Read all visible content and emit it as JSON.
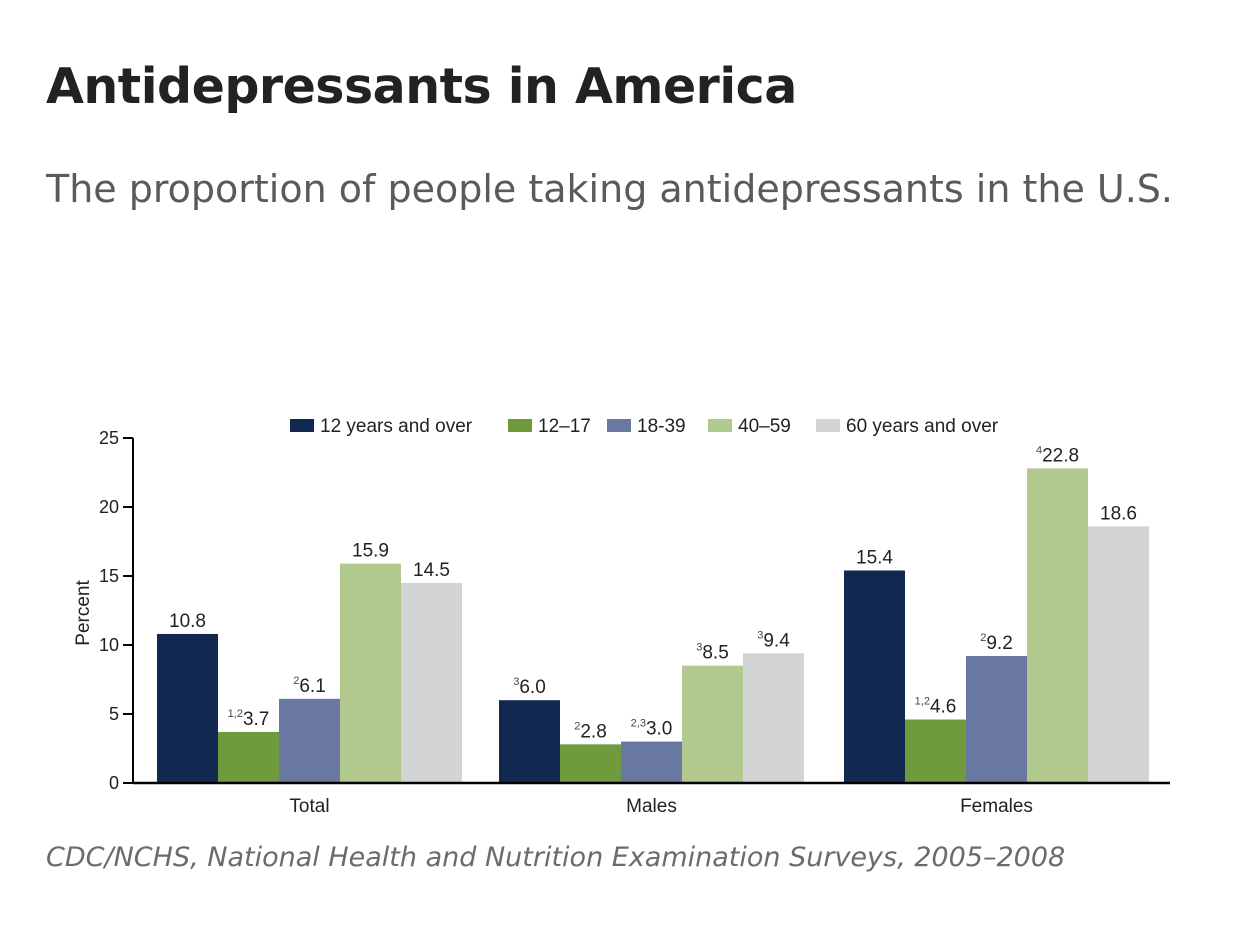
{
  "header": {
    "title": "Antidepressants in America",
    "subtitle": "The proportion of people taking antidepressants in the U.S."
  },
  "source": "CDC/NCHS, National Health and Nutrition Examination Surveys, 2005–2008",
  "chart_data": {
    "type": "bar",
    "title": "",
    "xlabel": "",
    "ylabel": "Percent",
    "ylim": [
      0,
      25
    ],
    "yticks": [
      0,
      5,
      10,
      15,
      20,
      25
    ],
    "categories": [
      "Total",
      "Males",
      "Females"
    ],
    "legend_position": "top",
    "series": [
      {
        "name": "12 years and over",
        "color": "#122850",
        "values": [
          10.8,
          6.0,
          15.4
        ],
        "labels": [
          "10.8",
          "6.0",
          "15.4"
        ],
        "notes": [
          "",
          "3",
          ""
        ]
      },
      {
        "name": "12–17",
        "color": "#6f9a3e",
        "values": [
          3.7,
          2.8,
          4.6
        ],
        "labels": [
          "3.7",
          "2.8",
          "4.6"
        ],
        "notes": [
          "1,2",
          "2",
          "1,2"
        ]
      },
      {
        "name": "18-39",
        "color": "#6878a0",
        "values": [
          6.1,
          3.0,
          9.2
        ],
        "labels": [
          "6.1",
          "3.0",
          "9.2"
        ],
        "notes": [
          "2",
          "2,3",
          "2"
        ]
      },
      {
        "name": "40–59",
        "color": "#b1c88e",
        "values": [
          15.9,
          8.5,
          22.8
        ],
        "labels": [
          "15.9",
          "8.5",
          "22.8"
        ],
        "notes": [
          "",
          "3",
          "4"
        ]
      },
      {
        "name": "60 years and over",
        "color": "#d3d4d6",
        "values": [
          14.5,
          9.4,
          18.6
        ],
        "labels": [
          "14.5",
          "9.4",
          "18.6"
        ],
        "notes": [
          "",
          "3",
          ""
        ]
      }
    ]
  }
}
